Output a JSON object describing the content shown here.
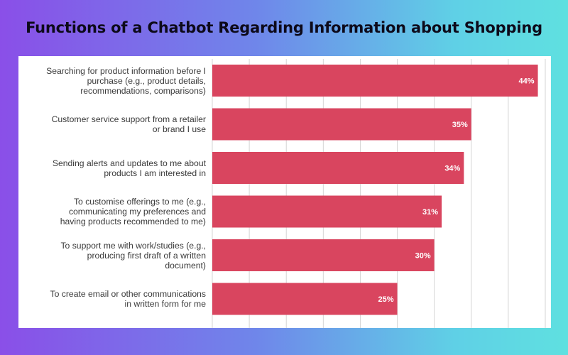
{
  "title": "Functions of a Chatbot Regarding Information about Shopping",
  "colors": {
    "bar": "#d9455f",
    "grid": "#d4d4d4",
    "value_text": "#ffffff"
  },
  "chart_data": {
    "type": "bar",
    "orientation": "horizontal",
    "categories": [
      "Searching for product information before I purchase (e.g., product details, recommendations, comparisons)",
      "Customer service support from a retailer or brand I use",
      "Sending alerts and updates to me about products I am interested in",
      "To customise offerings to me (e.g., communicating my preferences and having products recommended to me)",
      "To support me with work/studies (e.g., producing first draft of a written document)",
      "To create email or other communications in written form for me"
    ],
    "category_lines": [
      [
        "Searching for product information before I",
        "purchase (e.g., product details,",
        "recommendations, comparisons)"
      ],
      [
        "Customer service support from a retailer",
        "or brand I use"
      ],
      [
        "Sending alerts and updates to me about",
        "products I am interested in"
      ],
      [
        "To customise offerings to me (e.g.,",
        "communicating my preferences and",
        "having products recommended to me)"
      ],
      [
        "To support me with work/studies (e.g.,",
        "producing first draft of a written",
        "document)"
      ],
      [
        "To create email or other communications",
        "in written form for me"
      ]
    ],
    "values": [
      44,
      35,
      34,
      31,
      30,
      25
    ],
    "value_labels": [
      "44%",
      "35%",
      "34%",
      "31%",
      "30%",
      "25%"
    ],
    "xlim": [
      0,
      45
    ],
    "grid": true,
    "legend": "none"
  }
}
